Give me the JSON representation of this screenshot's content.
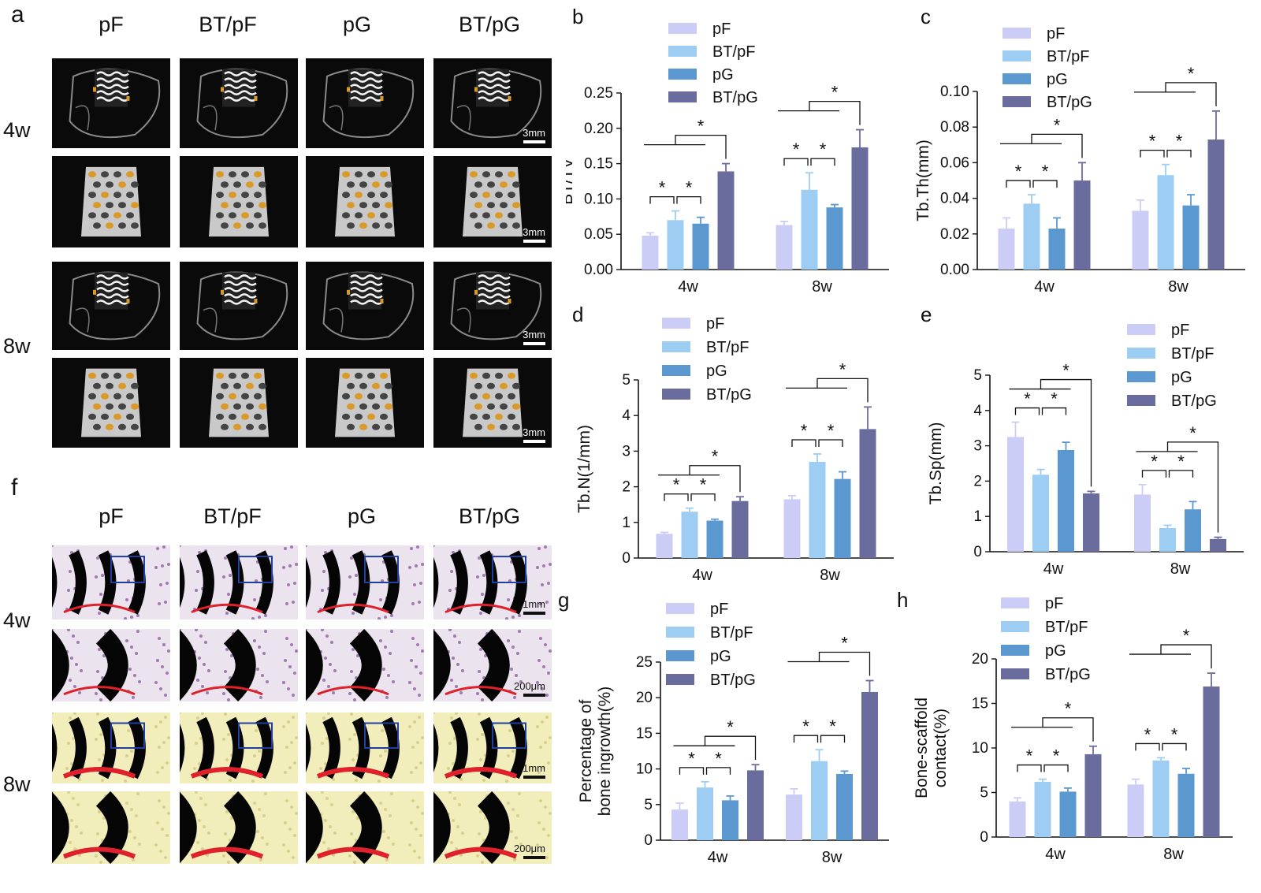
{
  "panels": {
    "a": {
      "label": "a",
      "columns": [
        "pF",
        "BT/pF",
        "pG",
        "BT/pG"
      ],
      "rows": [
        "4w",
        "8w"
      ],
      "scale_bar": "3mm"
    },
    "f": {
      "label": "f",
      "columns": [
        "pF",
        "BT/pF",
        "pG",
        "BT/pG"
      ],
      "rows": [
        "4w",
        "8w"
      ],
      "scale_bar_low": "1mm",
      "scale_bar_high": "200μm"
    }
  },
  "colors": {
    "pF": "#cccdf7",
    "BT/pF": "#9dcdf2",
    "pG": "#5b98cf",
    "BT/pG": "#6a6c9e",
    "scaffold_orange": "#d99a2a",
    "stain_red": "#e0202a",
    "stain_yellow": "#f2eebc"
  },
  "chart_data": [
    {
      "panel": "b",
      "type": "bar",
      "categories": [
        "4w",
        "8w"
      ],
      "series": [
        {
          "name": "pF",
          "values": [
            0.048,
            0.063
          ],
          "errors": [
            0.004,
            0.005
          ]
        },
        {
          "name": "BT/pF",
          "values": [
            0.07,
            0.113
          ],
          "errors": [
            0.013,
            0.024
          ]
        },
        {
          "name": "pG",
          "values": [
            0.065,
            0.088
          ],
          "errors": [
            0.009,
            0.004
          ]
        },
        {
          "name": "BT/pG",
          "values": [
            0.139,
            0.173
          ],
          "errors": [
            0.011,
            0.025
          ]
        }
      ],
      "ylabel": "BT/TV",
      "ylim": [
        0,
        0.25
      ],
      "yticks": [
        "0.00",
        "0.05",
        "0.10",
        "0.15",
        "0.20",
        "0.25"
      ],
      "legend": "top",
      "significance": "*"
    },
    {
      "panel": "c",
      "type": "bar",
      "categories": [
        "4w",
        "8w"
      ],
      "series": [
        {
          "name": "pF",
          "values": [
            0.023,
            0.033
          ],
          "errors": [
            0.006,
            0.006
          ]
        },
        {
          "name": "BT/pF",
          "values": [
            0.037,
            0.053
          ],
          "errors": [
            0.005,
            0.006
          ]
        },
        {
          "name": "pG",
          "values": [
            0.023,
            0.036
          ],
          "errors": [
            0.006,
            0.006
          ]
        },
        {
          "name": "BT/pG",
          "values": [
            0.05,
            0.073
          ],
          "errors": [
            0.01,
            0.016
          ]
        }
      ],
      "ylabel": "Tb.Th(mm)",
      "ylim": [
        0,
        0.1
      ],
      "yticks": [
        "0.00",
        "0.02",
        "0.04",
        "0.06",
        "0.08",
        "0.10"
      ],
      "legend": "top",
      "significance": "*"
    },
    {
      "panel": "d",
      "type": "bar",
      "categories": [
        "4w",
        "8w"
      ],
      "series": [
        {
          "name": "pF",
          "values": [
            0.68,
            1.65
          ],
          "errors": [
            0.04,
            0.1
          ]
        },
        {
          "name": "BT/pF",
          "values": [
            1.3,
            2.7
          ],
          "errors": [
            0.1,
            0.22
          ]
        },
        {
          "name": "pG",
          "values": [
            1.05,
            2.22
          ],
          "errors": [
            0.04,
            0.2
          ]
        },
        {
          "name": "BT/pG",
          "values": [
            1.6,
            3.62
          ],
          "errors": [
            0.12,
            0.62
          ]
        }
      ],
      "ylabel": "Tb.N(1/mm)",
      "ylim": [
        0,
        5
      ],
      "yticks": [
        "0",
        "1",
        "2",
        "3",
        "4",
        "5"
      ],
      "legend": "top",
      "significance": "*"
    },
    {
      "panel": "e",
      "type": "bar",
      "categories": [
        "4w",
        "8w"
      ],
      "series": [
        {
          "name": "pF",
          "values": [
            3.25,
            1.62
          ],
          "errors": [
            0.42,
            0.28
          ]
        },
        {
          "name": "BT/pF",
          "values": [
            2.18,
            0.67
          ],
          "errors": [
            0.15,
            0.08
          ]
        },
        {
          "name": "pG",
          "values": [
            2.88,
            1.2
          ],
          "errors": [
            0.22,
            0.22
          ]
        },
        {
          "name": "BT/pG",
          "values": [
            1.65,
            0.36
          ],
          "errors": [
            0.06,
            0.05
          ]
        }
      ],
      "ylabel": "Tb.Sp(mm)",
      "ylim": [
        0,
        5
      ],
      "yticks": [
        "0",
        "1",
        "2",
        "3",
        "4",
        "5"
      ],
      "legend": "top-right",
      "significance": "*"
    },
    {
      "panel": "g",
      "type": "bar",
      "categories": [
        "4w",
        "8w"
      ],
      "series": [
        {
          "name": "pF",
          "values": [
            4.3,
            6.4
          ],
          "errors": [
            0.9,
            0.8
          ]
        },
        {
          "name": "BT/pF",
          "values": [
            7.4,
            11.1
          ],
          "errors": [
            0.8,
            1.6
          ]
        },
        {
          "name": "pG",
          "values": [
            5.6,
            9.3
          ],
          "errors": [
            0.6,
            0.4
          ]
        },
        {
          "name": "BT/pG",
          "values": [
            9.8,
            20.8
          ],
          "errors": [
            0.8,
            1.6
          ]
        }
      ],
      "ylabel": "Percentage of\nbone ingrowth(%)",
      "ylim": [
        0,
        25
      ],
      "yticks": [
        "0",
        "5",
        "10",
        "15",
        "20",
        "25"
      ],
      "legend": "top",
      "significance": "*"
    },
    {
      "panel": "h",
      "type": "bar",
      "categories": [
        "4w",
        "8w"
      ],
      "series": [
        {
          "name": "pF",
          "values": [
            4.0,
            5.9
          ],
          "errors": [
            0.4,
            0.6
          ]
        },
        {
          "name": "BT/pF",
          "values": [
            6.2,
            8.6
          ],
          "errors": [
            0.3,
            0.3
          ]
        },
        {
          "name": "pG",
          "values": [
            5.1,
            7.1
          ],
          "errors": [
            0.4,
            0.6
          ]
        },
        {
          "name": "BT/pG",
          "values": [
            9.3,
            16.9
          ],
          "errors": [
            0.9,
            1.5
          ]
        }
      ],
      "ylabel": "Bone-scaffold\ncontact(%)",
      "ylim": [
        0,
        20
      ],
      "yticks": [
        "0",
        "5",
        "10",
        "15",
        "20"
      ],
      "legend": "top",
      "significance": "*"
    }
  ]
}
